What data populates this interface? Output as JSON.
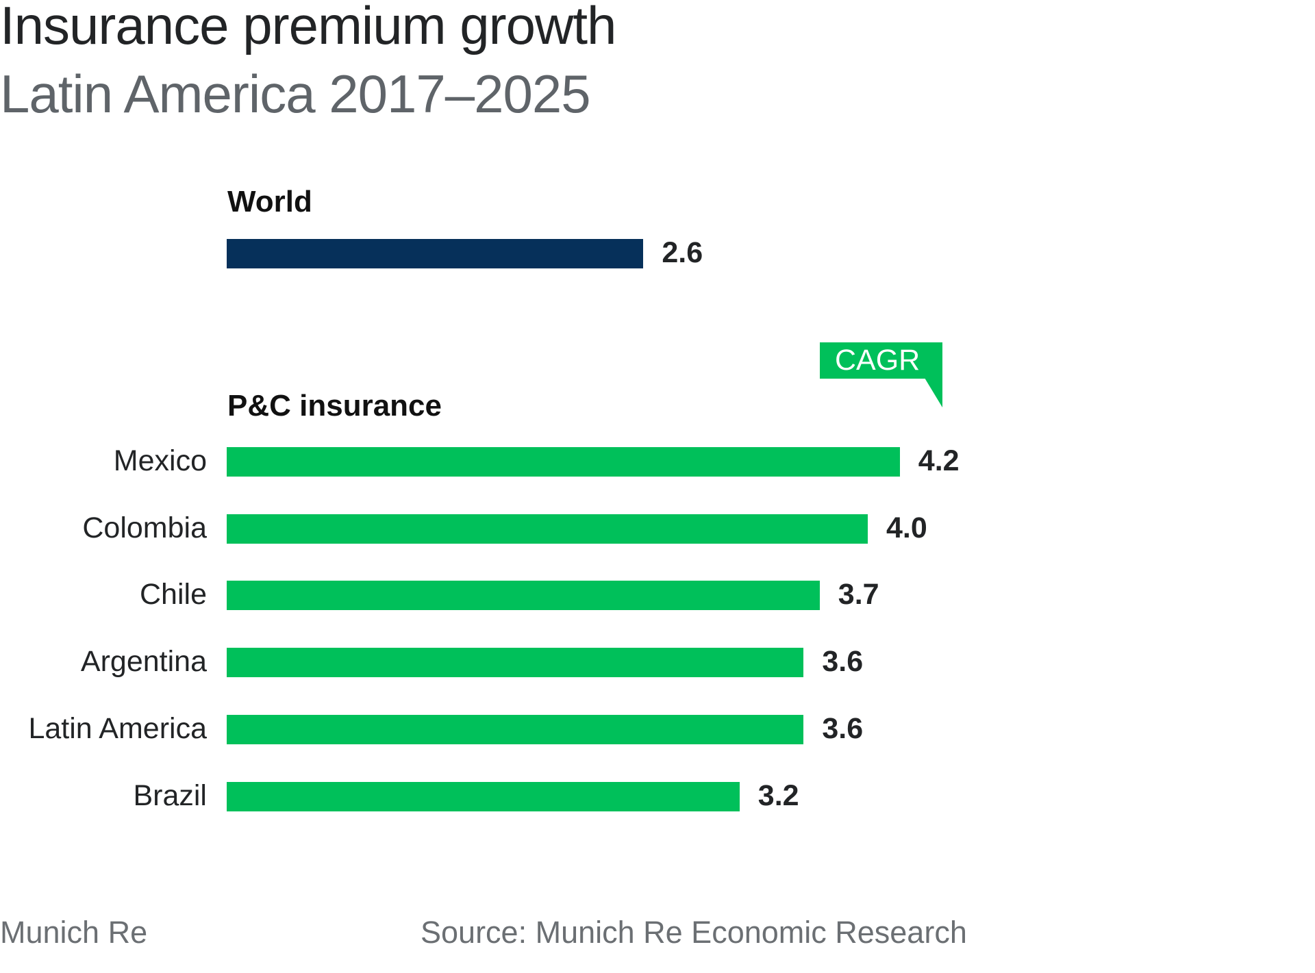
{
  "chart_data": {
    "type": "bar",
    "orientation": "horizontal",
    "title": "Insurance premium growth",
    "subtitle": "Latin America 2017–2025",
    "annotation": "CAGR",
    "groups": [
      {
        "label": "World",
        "categories": [
          "World"
        ],
        "values": [
          2.6
        ],
        "color": "#06305a",
        "show_category_labels": false
      },
      {
        "label": "P&C insurance",
        "categories": [
          "Mexico",
          "Colombia",
          "Chile",
          "Argentina",
          "Latin America",
          "Brazil"
        ],
        "values": [
          4.2,
          4.0,
          3.7,
          3.6,
          3.6,
          3.2
        ],
        "color": "#00c05a",
        "show_category_labels": true
      }
    ],
    "value_labels": [
      "2.6",
      "4.2",
      "4.0",
      "3.7",
      "3.6",
      "3.6",
      "3.2"
    ],
    "grid": false,
    "axes_visible": false
  },
  "footer": {
    "brand": "Munich Re",
    "source": "Source: Munich Re Economic Research"
  }
}
